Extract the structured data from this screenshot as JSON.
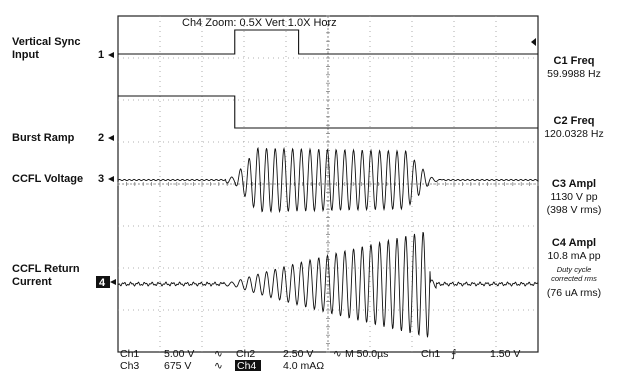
{
  "zoom_text": "Ch4 Zoom:    0.5X Vert    1.0X Horz",
  "channels": {
    "ch1": {
      "name": "Vertical Sync",
      "name2": "Input",
      "marker": "1"
    },
    "ch2": {
      "name": "Burst Ramp",
      "marker": "2"
    },
    "ch3": {
      "name": "CCFL Voltage",
      "marker": "3"
    },
    "ch4": {
      "name": "CCFL Return",
      "name2": "Current",
      "marker": "4"
    }
  },
  "measurements": {
    "c1_label": "C1 Freq",
    "c1_value": "59.9988 Hz",
    "c2_label": "C2 Freq",
    "c2_value": "120.0328 Hz",
    "c3_label": "C3 Ampl",
    "c3_value1": "1130 V pp",
    "c3_value2": "(398 V rms)",
    "c4_label": "C4 Ampl",
    "c4_value1": "10.8 mA pp",
    "c4_note1": "Duty cycle",
    "c4_note2": "corrected rms",
    "c4_value2": "(76 uA rms)"
  },
  "bottom": {
    "ch1_label": "Ch1",
    "ch1_scale": "5.00 V",
    "ch2_label": "Ch2",
    "ch2_scale": "2.50 V",
    "ch3_label": "Ch3",
    "ch3_scale": "675 V",
    "ch4_label": "Ch4",
    "ch4_scale": "4.0 mAΩ",
    "timebase": "M 50.0µs",
    "trigger_src": "Ch1",
    "trigger_level": "1.50 V"
  },
  "chart_data": {
    "type": "line",
    "title": "",
    "x_unit": "µs",
    "x_range": [
      -250,
      250
    ],
    "divisions": {
      "x": 10,
      "y": 8
    },
    "series": [
      {
        "name": "Vertical Sync Input",
        "kind": "pulse",
        "low": 0,
        "high": 1,
        "rise_us": -111,
        "fall_us": -35
      },
      {
        "name": "Burst Ramp",
        "kind": "step",
        "high_until_us": -111,
        "high": 1,
        "low": 0
      },
      {
        "name": "CCFL Voltage",
        "kind": "burst",
        "start_us": -112,
        "end_us": 122,
        "amplitude_vpp": 1130,
        "rms_v": 398
      },
      {
        "name": "CCFL Return Current",
        "kind": "burst_ramp",
        "start_us": -112,
        "end_us": 122,
        "amplitude_mapp": 10.8,
        "rms_ua": 76
      }
    ]
  }
}
